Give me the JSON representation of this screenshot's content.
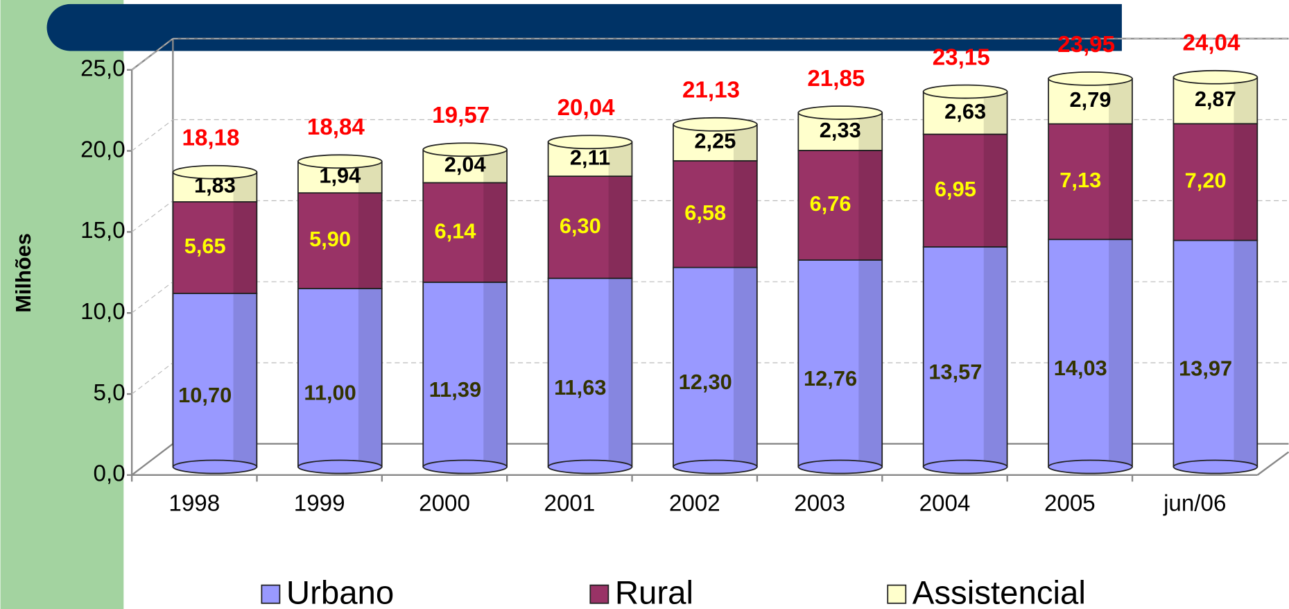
{
  "chart_data": {
    "type": "bar",
    "stacked": true,
    "y_label": "Milhões",
    "categories": [
      "1998",
      "1999",
      "2000",
      "2001",
      "2002",
      "2003",
      "2004",
      "2005",
      "jun/06"
    ],
    "series": [
      {
        "name": "Urbano",
        "color": "#9999ff",
        "label_color": "#333300",
        "values": [
          10.7,
          11.0,
          11.39,
          11.63,
          12.3,
          12.76,
          13.57,
          14.03,
          13.97
        ],
        "value_labels": [
          "10,70",
          "11,00",
          "11,39",
          "11,63",
          "12,30",
          "12,76",
          "13,57",
          "14,03",
          "13,97"
        ]
      },
      {
        "name": "Rural",
        "color": "#993366",
        "label_color": "#ffff00",
        "values": [
          5.65,
          5.9,
          6.14,
          6.3,
          6.58,
          6.76,
          6.95,
          7.13,
          7.2
        ],
        "value_labels": [
          "5,65",
          "5,90",
          "6,14",
          "6,30",
          "6,58",
          "6,76",
          "6,95",
          "7,13",
          "7,20"
        ]
      },
      {
        "name": "Assistencial",
        "color": "#ffffcc",
        "label_color": "#000000",
        "values": [
          1.83,
          1.94,
          2.04,
          2.11,
          2.25,
          2.33,
          2.63,
          2.79,
          2.87
        ],
        "value_labels": [
          "1,83",
          "1,94",
          "2,04",
          "2,11",
          "2,25",
          "2,33",
          "2,63",
          "2,79",
          "2,87"
        ]
      }
    ],
    "totals": [
      18.18,
      18.84,
      19.57,
      20.04,
      21.13,
      21.85,
      23.15,
      23.95,
      24.04
    ],
    "totals_labels": [
      "18,18",
      "18,84",
      "19,57",
      "20,04",
      "21,13",
      "21,85",
      "23,15",
      "23,95",
      "24,04"
    ],
    "totals_color": "#ff0000",
    "ylim": [
      0,
      25
    ],
    "yticks": [
      {
        "value": 0,
        "label": "0,0"
      },
      {
        "value": 5,
        "label": "5,0"
      },
      {
        "value": 10,
        "label": "10,0"
      },
      {
        "value": 15,
        "label": "15,0"
      },
      {
        "value": 20,
        "label": "20,0"
      },
      {
        "value": 25,
        "label": "25,0"
      }
    ],
    "grid": true,
    "legend": "bottom"
  }
}
